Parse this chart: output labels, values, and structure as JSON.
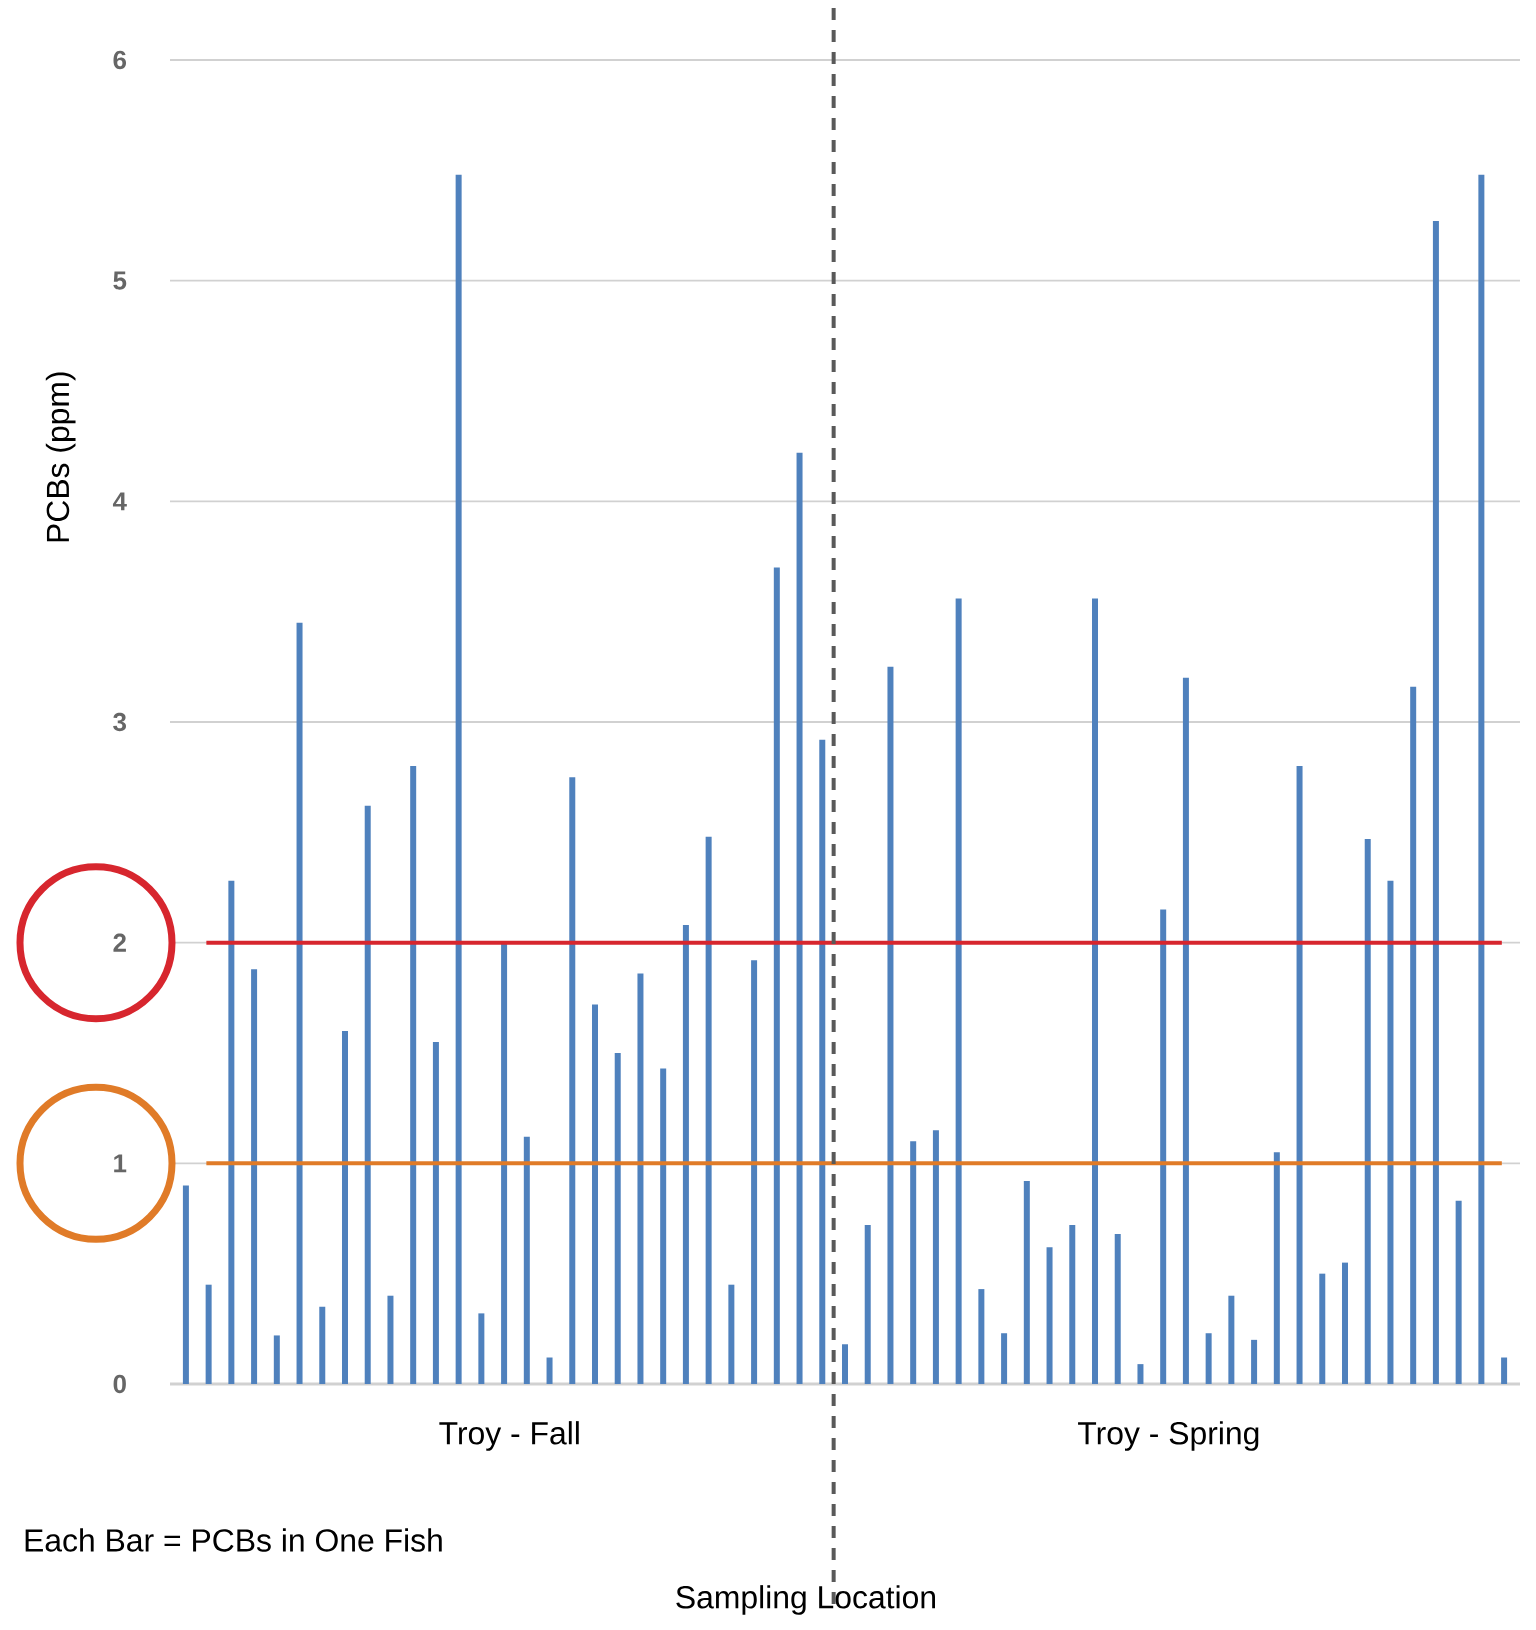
{
  "chart_data": {
    "type": "bar",
    "ylabel": "PCBs (ppm)",
    "categories": [
      null,
      null,
      null,
      null,
      null,
      null,
      null,
      null,
      null,
      null,
      null,
      null,
      null,
      null,
      null,
      null,
      null,
      null,
      null,
      null,
      null,
      null,
      null,
      null,
      null,
      null,
      null,
      null,
      null,
      null,
      null,
      null,
      null,
      null,
      null,
      null,
      null,
      null,
      null,
      null,
      null,
      null,
      null,
      null,
      null,
      null,
      null,
      null,
      null,
      null,
      null,
      null,
      null,
      null,
      null,
      null,
      null,
      null,
      null
    ],
    "values": [
      0.9,
      0.45,
      2.28,
      1.88,
      0.22,
      3.45,
      0.35,
      1.6,
      2.62,
      0.4,
      2.8,
      1.55,
      5.48,
      0.32,
      2.0,
      1.12,
      0.12,
      2.75,
      1.72,
      1.5,
      1.86,
      1.43,
      2.08,
      2.48,
      0.45,
      1.92,
      3.7,
      4.22,
      2.92,
      0.18,
      0.72,
      3.25,
      1.1,
      1.15,
      3.56,
      0.43,
      0.23,
      0.92,
      0.62,
      0.72,
      3.56,
      0.68,
      0.09,
      2.15,
      3.2,
      0.23,
      0.4,
      0.2,
      1.05,
      2.8,
      0.5,
      0.55,
      2.47,
      2.28,
      3.16,
      5.27,
      0.83,
      5.48,
      0.12
    ],
    "color": "#4f81bd",
    "ylim": [
      0,
      6
    ],
    "yticks": [
      0,
      1,
      2,
      3,
      4,
      5,
      6
    ],
    "grid": "y",
    "ref_lines": [
      {
        "axis": "y",
        "value": 2,
        "color": "#d7262e"
      },
      {
        "axis": "y",
        "value": 1,
        "color": "#e07b28"
      }
    ],
    "annotations": [
      "Troy - Fall",
      "Troy - Spring",
      "Each Bar = PCBs in One Fish",
      "Sampling Location"
    ]
  }
}
